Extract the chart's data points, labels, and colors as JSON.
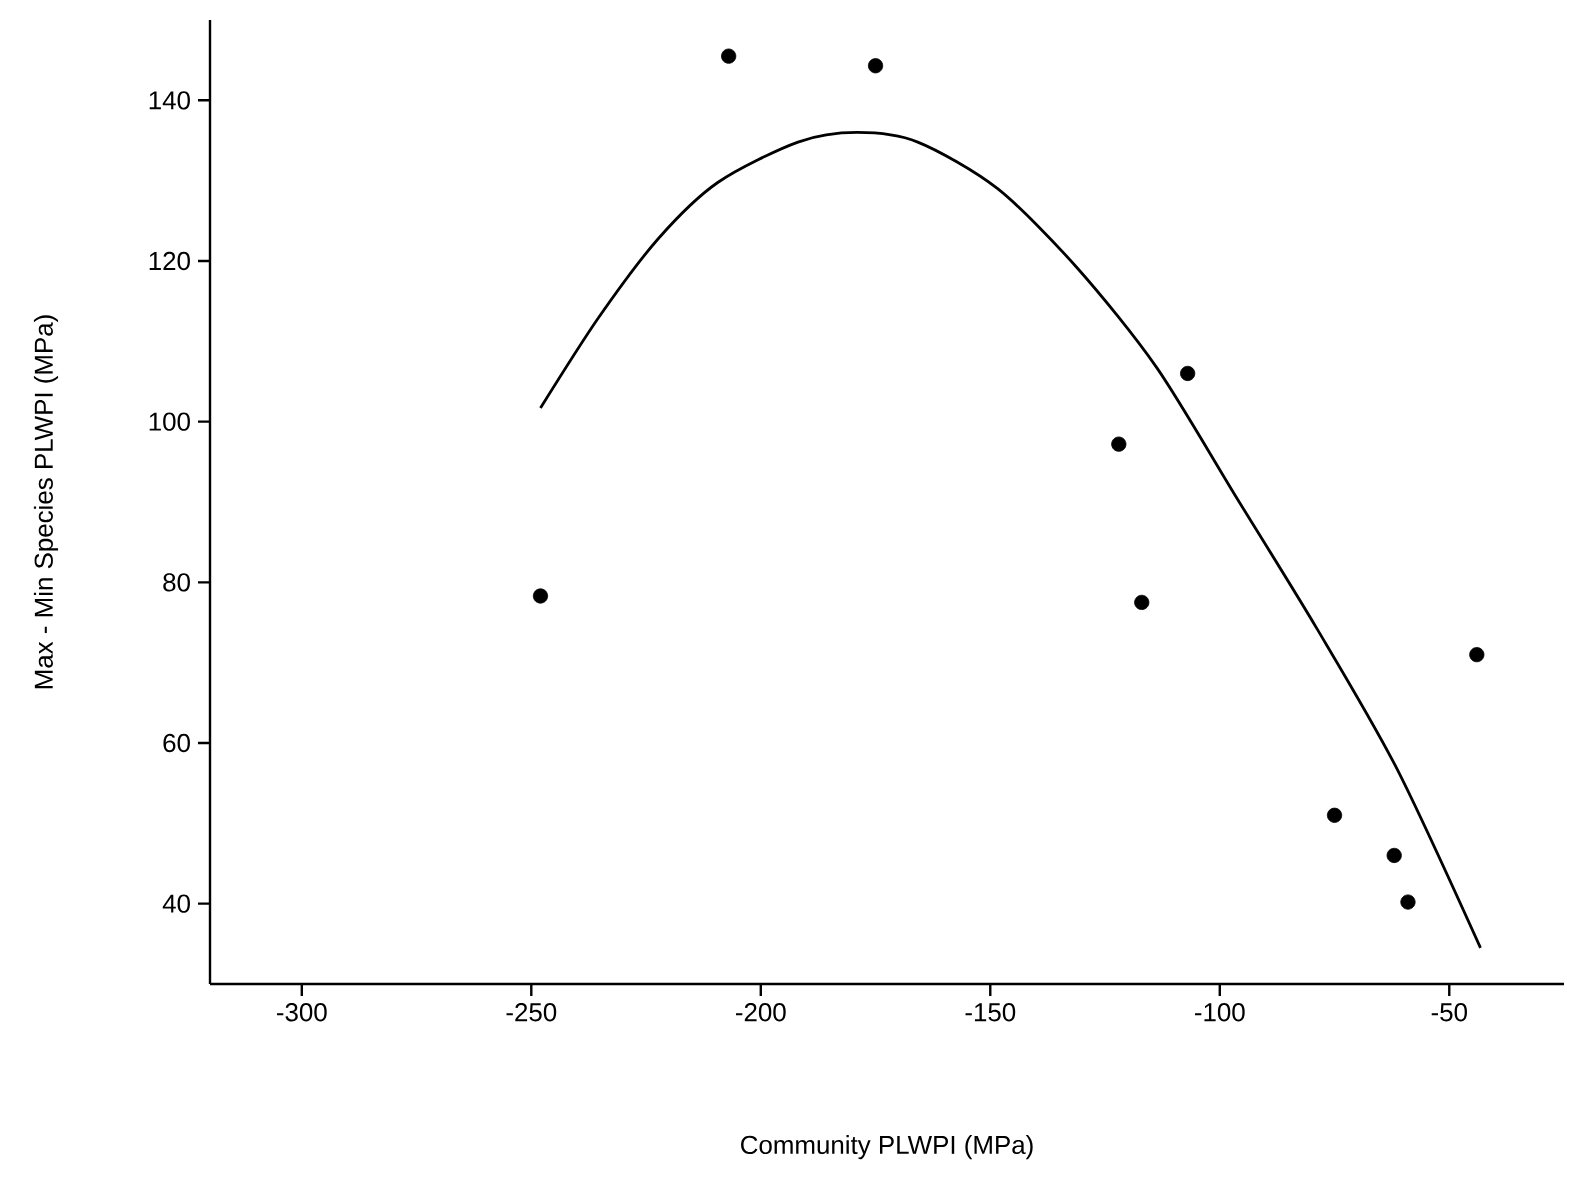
{
  "chart_data": {
    "type": "scatter",
    "xlabel": "Community PLWPI (MPa)",
    "ylabel": "Max - Min Species PLWPI (MPa)",
    "xlim": [
      -320,
      -25
    ],
    "ylim": [
      30,
      150
    ],
    "xticks": [
      -300,
      -250,
      -200,
      -150,
      -100,
      -50
    ],
    "yticks": [
      40,
      60,
      80,
      100,
      120,
      140
    ],
    "grid": false,
    "series": [
      {
        "marker": "circle",
        "color": "#000000",
        "x": [
          -248,
          -207,
          -175,
          -122,
          -117,
          -107,
          -75,
          -62,
          -59,
          -44
        ],
        "values": [
          78.3,
          145.5,
          144.3,
          97.2,
          77.5,
          106,
          51,
          46,
          40.2,
          71
        ]
      },
      {
        "type": "line",
        "marker": "none",
        "color": "#000000",
        "line_style": "solid",
        "x": [
          -248,
          -235.4,
          -222.3,
          -209.3,
          -191.9,
          -179,
          -165.8,
          -148.4,
          -131,
          -113.7,
          -96.3,
          -78.9,
          -61.5,
          -43.2
        ],
        "values": [
          101.7,
          112.9,
          122.8,
          129.8,
          134.8,
          136,
          134.8,
          129,
          119.1,
          106.7,
          90.5,
          74.3,
          56.9,
          34.5
        ]
      }
    ]
  }
}
